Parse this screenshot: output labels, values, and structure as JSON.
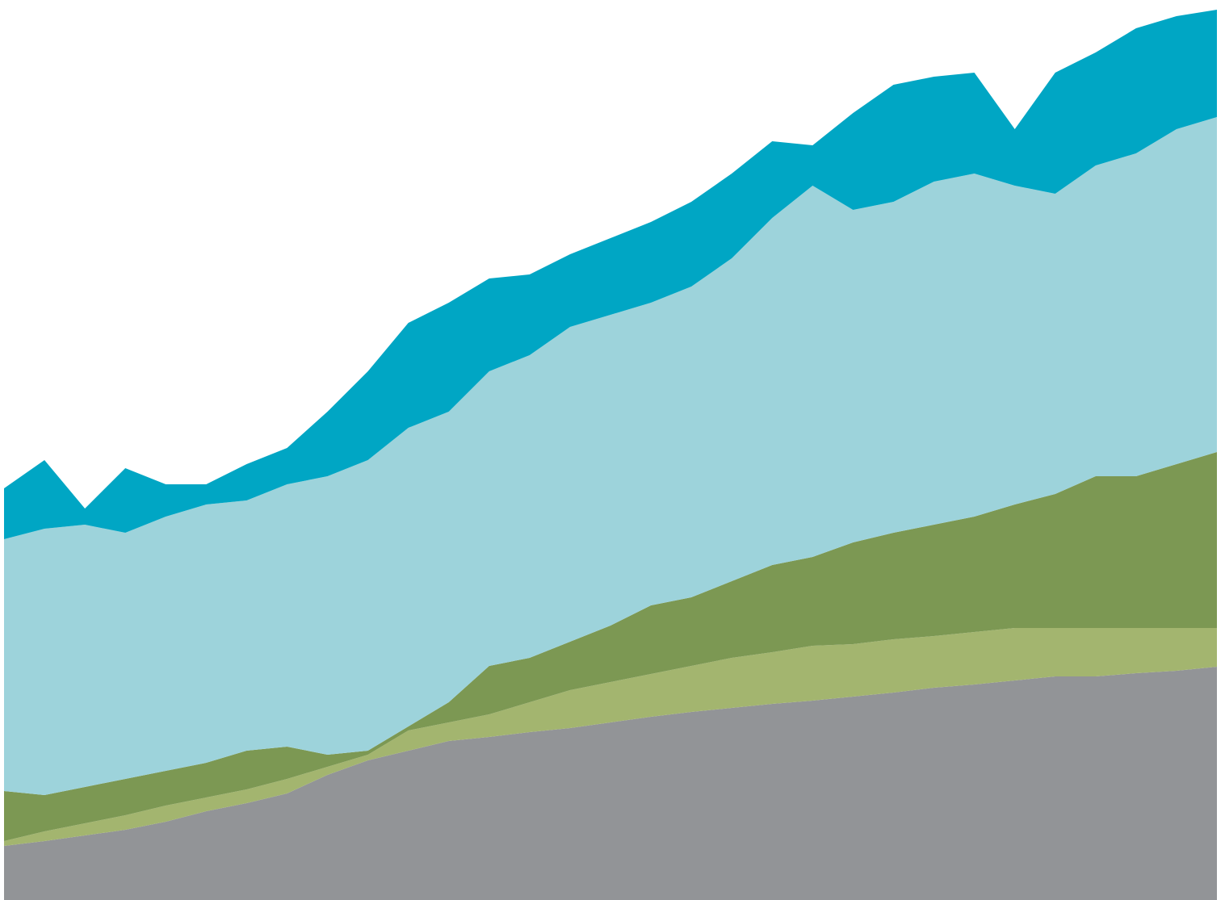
{
  "chart_data": {
    "type": "stacked-area",
    "x": [
      0,
      1,
      2,
      3,
      4,
      5,
      6,
      7,
      8,
      9,
      10,
      11,
      12,
      13,
      14,
      15,
      16,
      17,
      18,
      19,
      20,
      21,
      22,
      23,
      24,
      25,
      26,
      27,
      28,
      29,
      30
    ],
    "xlim": [
      0,
      30
    ],
    "ylim": [
      0,
      1115
    ],
    "series": [
      {
        "color": "#929497",
        "values": [
          67,
          73,
          80,
          87,
          97,
          110,
          120,
          132,
          155,
          173,
          185,
          197,
          202,
          208,
          213,
          220,
          227,
          233,
          238,
          243,
          247,
          252,
          257,
          263,
          267,
          272,
          277,
          277,
          281,
          284,
          289
        ]
      },
      {
        "color": "#a3b56f",
        "values": [
          6,
          12,
          15,
          18,
          20,
          17,
          17,
          18,
          10,
          7,
          25,
          23,
          28,
          37,
          47,
          50,
          53,
          57,
          62,
          64,
          68,
          65,
          66,
          64,
          65,
          65,
          60,
          60,
          56,
          53,
          48
        ]
      },
      {
        "color": "#7c9853",
        "values": [
          62,
          45,
          45,
          45,
          43,
          43,
          48,
          40,
          15,
          5,
          5,
          25,
          60,
          55,
          60,
          70,
          85,
          85,
          95,
          108,
          110,
          126,
          132,
          138,
          143,
          153,
          166,
          188,
          188,
          203,
          218
        ]
      },
      {
        "color": "#9dd3db",
        "values": [
          312,
          330,
          325,
          305,
          315,
          320,
          310,
          325,
          345,
          360,
          370,
          360,
          365,
          375,
          390,
          385,
          375,
          385,
          400,
          430,
          460,
          412,
          410,
          425,
          425,
          395,
          372,
          385,
          400,
          415,
          415
        ]
      },
      {
        "color": "#00a6c4",
        "values": [
          63,
          85,
          20,
          80,
          40,
          25,
          45,
          45,
          80,
          110,
          130,
          135,
          115,
          100,
          90,
          95,
          100,
          105,
          105,
          95,
          50,
          120,
          145,
          130,
          125,
          70,
          150,
          140,
          155,
          140,
          133
        ]
      }
    ]
  }
}
